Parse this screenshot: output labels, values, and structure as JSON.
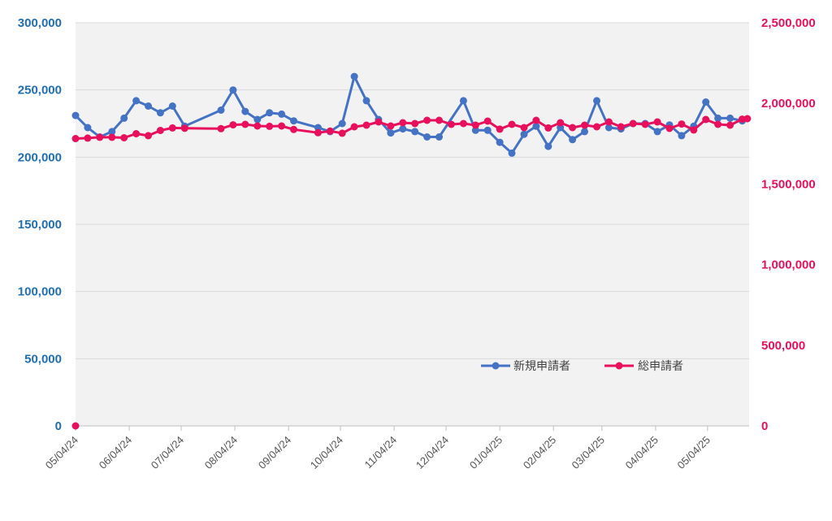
{
  "chart_data": {
    "type": "line",
    "title": "",
    "xlabel": "",
    "ylabel_left": "",
    "ylabel_right": "",
    "x_tick_labels": [
      "05/04/24",
      "06/04/24",
      "07/04/24",
      "08/04/24",
      "09/04/24",
      "10/04/24",
      "11/04/24",
      "12/04/24",
      "01/04/25",
      "02/04/25",
      "03/04/25",
      "04/04/25",
      "05/04/25"
    ],
    "x_range": [
      "2024-05-04",
      "2025-05-28"
    ],
    "y_left": {
      "range": [
        0,
        300000
      ],
      "ticks": [
        0,
        50000,
        100000,
        150000,
        200000,
        250000,
        300000
      ],
      "tick_labels": [
        "0",
        "50,000",
        "100,000",
        "150,000",
        "200,000",
        "250,000",
        "300,000"
      ]
    },
    "y_right": {
      "range": [
        0,
        2500000
      ],
      "ticks": [
        0,
        500000,
        1000000,
        1500000,
        2000000,
        2500000
      ],
      "tick_labels": [
        "0",
        "500,000",
        "1,000,000",
        "1,500,000",
        "2,000,000",
        "2,500,000"
      ]
    },
    "grid": true,
    "legend_position": "bottom-right",
    "series": [
      {
        "name": "新規申請者",
        "axis": "left",
        "color": "#4472c4",
        "points": [
          [
            "2024-05-04",
            231000
          ],
          [
            "2024-05-11",
            222000
          ],
          [
            "2024-05-18",
            215000
          ],
          [
            "2024-05-25",
            219000
          ],
          [
            "2024-06-01",
            229000
          ],
          [
            "2024-06-08",
            242000
          ],
          [
            "2024-06-15",
            238000
          ],
          [
            "2024-06-22",
            233000
          ],
          [
            "2024-06-29",
            238000
          ],
          [
            "2024-07-06",
            223000
          ],
          [
            "2024-07-27",
            235000
          ],
          [
            "2024-08-03",
            250000
          ],
          [
            "2024-08-10",
            234000
          ],
          [
            "2024-08-17",
            228000
          ],
          [
            "2024-08-24",
            233000
          ],
          [
            "2024-08-31",
            232000
          ],
          [
            "2024-09-07",
            227000
          ],
          [
            "2024-09-21",
            222000
          ],
          [
            "2024-09-28",
            219000
          ],
          [
            "2024-10-05",
            225000
          ],
          [
            "2024-10-12",
            260000
          ],
          [
            "2024-10-19",
            242000
          ],
          [
            "2024-10-26",
            228000
          ],
          [
            "2024-11-02",
            218000
          ],
          [
            "2024-11-09",
            221000
          ],
          [
            "2024-11-16",
            219000
          ],
          [
            "2024-11-23",
            215000
          ],
          [
            "2024-11-30",
            215000
          ],
          [
            "2024-12-14",
            242000
          ],
          [
            "2024-12-21",
            220000
          ],
          [
            "2024-12-28",
            220000
          ],
          [
            "2025-01-04",
            211000
          ],
          [
            "2025-01-11",
            203000
          ],
          [
            "2025-01-18",
            217000
          ],
          [
            "2025-01-25",
            223000
          ],
          [
            "2025-02-01",
            208000
          ],
          [
            "2025-02-08",
            222000
          ],
          [
            "2025-02-15",
            213000
          ],
          [
            "2025-02-22",
            219000
          ],
          [
            "2025-03-01",
            242000
          ],
          [
            "2025-03-08",
            222000
          ],
          [
            "2025-03-15",
            221000
          ],
          [
            "2025-03-22",
            225000
          ],
          [
            "2025-03-29",
            225000
          ],
          [
            "2025-04-05",
            219000
          ],
          [
            "2025-04-12",
            224000
          ],
          [
            "2025-04-19",
            216000
          ],
          [
            "2025-04-26",
            223000
          ],
          [
            "2025-05-03",
            241000
          ],
          [
            "2025-05-10",
            229000
          ],
          [
            "2025-05-17",
            229000
          ],
          [
            "2025-05-24",
            227000
          ]
        ]
      },
      {
        "name": "総申請者",
        "axis": "right",
        "color": "#e8105c",
        "points": [
          [
            "2024-05-04",
            0
          ],
          [
            "2024-05-04",
            1782000
          ],
          [
            "2024-05-11",
            1785000
          ],
          [
            "2024-05-18",
            1790000
          ],
          [
            "2024-05-25",
            1790000
          ],
          [
            "2024-06-01",
            1787000
          ],
          [
            "2024-06-08",
            1812000
          ],
          [
            "2024-06-15",
            1800000
          ],
          [
            "2024-06-22",
            1832000
          ],
          [
            "2024-06-29",
            1848000
          ],
          [
            "2024-07-06",
            1846000
          ],
          [
            "2024-07-27",
            1843000
          ],
          [
            "2024-08-03",
            1867000
          ],
          [
            "2024-08-10",
            1870000
          ],
          [
            "2024-08-17",
            1860000
          ],
          [
            "2024-08-24",
            1858000
          ],
          [
            "2024-08-31",
            1860000
          ],
          [
            "2024-09-07",
            1838000
          ],
          [
            "2024-09-21",
            1818000
          ],
          [
            "2024-09-28",
            1828000
          ],
          [
            "2024-10-05",
            1815000
          ],
          [
            "2024-10-12",
            1855000
          ],
          [
            "2024-10-19",
            1865000
          ],
          [
            "2024-10-26",
            1885000
          ],
          [
            "2024-11-02",
            1860000
          ],
          [
            "2024-11-09",
            1880000
          ],
          [
            "2024-11-16",
            1875000
          ],
          [
            "2024-11-23",
            1895000
          ],
          [
            "2024-11-30",
            1895000
          ],
          [
            "2024-12-07",
            1870000
          ],
          [
            "2024-12-14",
            1875000
          ],
          [
            "2024-12-21",
            1865000
          ],
          [
            "2024-12-28",
            1890000
          ],
          [
            "2025-01-04",
            1840000
          ],
          [
            "2025-01-11",
            1870000
          ],
          [
            "2025-01-18",
            1850000
          ],
          [
            "2025-01-25",
            1895000
          ],
          [
            "2025-02-01",
            1848000
          ],
          [
            "2025-02-08",
            1880000
          ],
          [
            "2025-02-15",
            1850000
          ],
          [
            "2025-02-22",
            1865000
          ],
          [
            "2025-03-01",
            1855000
          ],
          [
            "2025-03-08",
            1885000
          ],
          [
            "2025-03-15",
            1855000
          ],
          [
            "2025-03-22",
            1875000
          ],
          [
            "2025-03-29",
            1870000
          ],
          [
            "2025-04-05",
            1885000
          ],
          [
            "2025-04-12",
            1845000
          ],
          [
            "2025-04-19",
            1872000
          ],
          [
            "2025-04-26",
            1835000
          ],
          [
            "2025-05-03",
            1900000
          ],
          [
            "2025-05-10",
            1870000
          ],
          [
            "2025-05-17",
            1865000
          ],
          [
            "2025-05-24",
            1902000
          ],
          [
            "2025-05-27",
            1905000
          ]
        ]
      }
    ]
  }
}
